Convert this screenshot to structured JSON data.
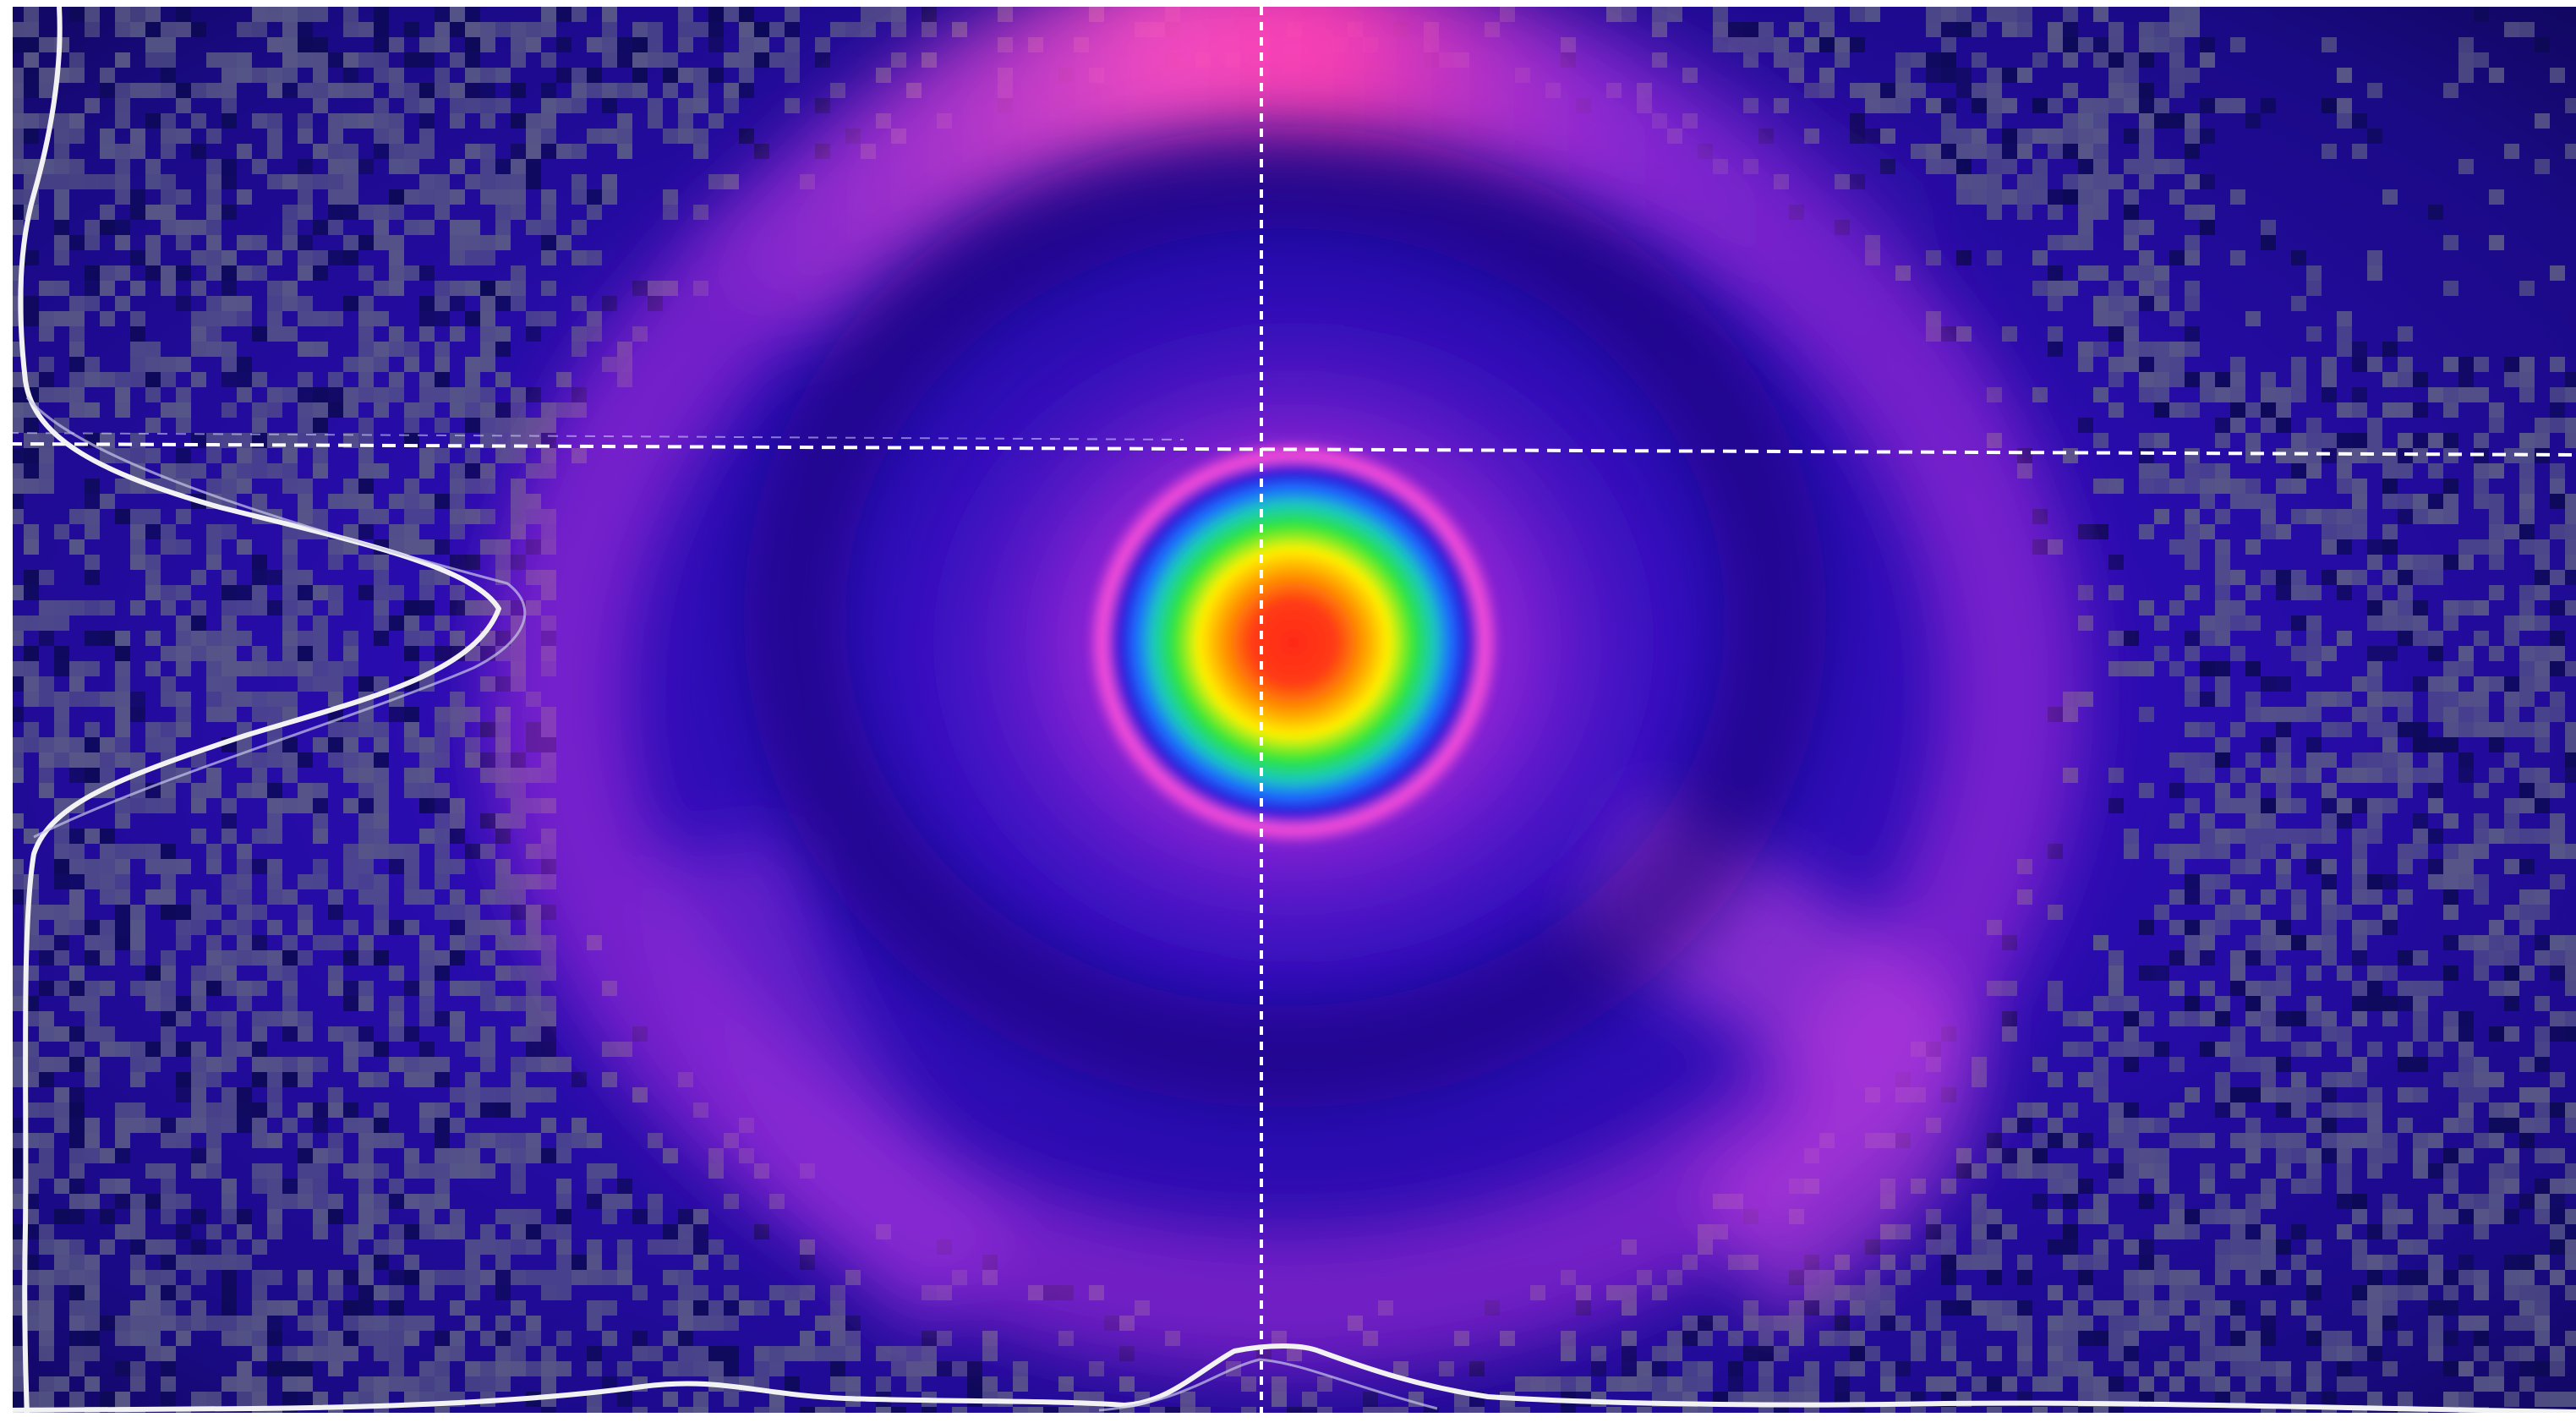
{
  "view": {
    "kind": "laser-beam-profile",
    "palette": {
      "background": "#1a0a8a",
      "noise_gray": "#5a5a86",
      "noise_dark": "#0d0a55",
      "ring": "#d23ce6",
      "ring_bright": "#ff4fc0",
      "crosshair": "#ffffff",
      "profile_line": "#f2f2f2",
      "frame": "#ffffff"
    },
    "colormap": [
      "#ff2a1a",
      "#ff9a00",
      "#fff200",
      "#2ee63a",
      "#1e8cff",
      "#2020e0",
      "#ff4fd8"
    ],
    "crosshair": {
      "style": "dashed",
      "vertical_position": 0.49,
      "horizontal_position": 0.31
    },
    "profiles": {
      "vertical_profile_side": "left",
      "horizontal_profile_side": "bottom"
    }
  }
}
